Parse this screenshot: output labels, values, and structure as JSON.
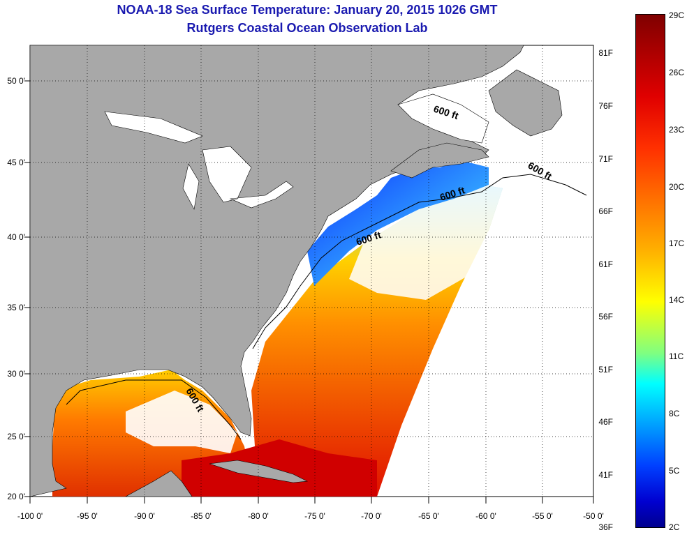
{
  "header": {
    "title": "NOAA-18 Sea Surface Temperature:  January 20, 2015 1026 GMT",
    "subtitle": "Rutgers Coastal Ocean Observation Lab"
  },
  "map": {
    "lon_labels": [
      "-100 0'",
      "-95 0'",
      "-90 0'",
      "-85 0'",
      "-80 0'",
      "-75 0'",
      "-70 0'",
      "-65 0'",
      "-60 0'",
      "-55 0'",
      "-50 0'"
    ],
    "lat_labels": [
      "20 0'",
      "25 0'",
      "30 0'",
      "35 0'",
      "40 0'",
      "45 0'",
      "50 0'"
    ],
    "contour_labels": [
      "600 ft",
      "600 ft",
      "600 ft",
      "600 ft",
      "600 ft"
    ],
    "colors": {
      "land": "#a8a8a8",
      "no_data": "#ffffff",
      "grid": "#000000"
    }
  },
  "colorbar": {
    "f_labels": [
      "81F",
      "76F",
      "71F",
      "66F",
      "61F",
      "56F",
      "51F",
      "46F",
      "41F",
      "36F"
    ],
    "c_labels": [
      "29C",
      "26C",
      "23C",
      "20C",
      "17C",
      "14C",
      "11C",
      "8C",
      "5C",
      "2C"
    ]
  }
}
